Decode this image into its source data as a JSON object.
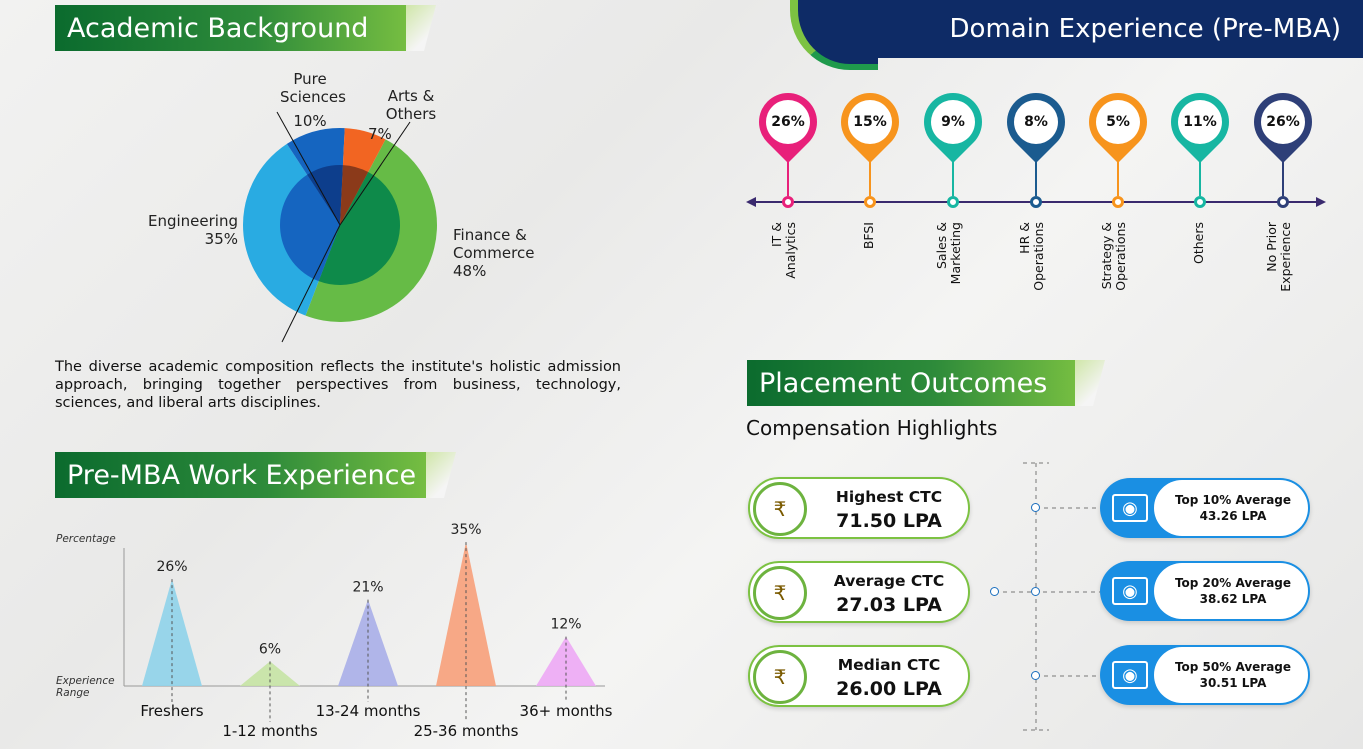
{
  "academic": {
    "title": "Academic Background",
    "description": "The diverse academic composition reflects the institute's holistic admission approach, bringing together perspectives from business, technology, sciences, and liberal arts disciplines.",
    "slices": [
      {
        "label": "Finance & Commerce",
        "value": "48%"
      },
      {
        "label": "Engineering",
        "value": "35%"
      },
      {
        "label": "Pure Sciences",
        "value": "10%"
      },
      {
        "label": "Arts & Others",
        "value": "7%"
      }
    ]
  },
  "work_experience": {
    "title": "Pre-MBA Work Experience",
    "ylabel": "Percentage",
    "xlabel": "Experience Range",
    "bars": [
      {
        "label": "Freshers",
        "value": "26%"
      },
      {
        "label": "1-12 months",
        "value": "6%"
      },
      {
        "label": "13-24 months",
        "value": "21%"
      },
      {
        "label": "25-36 months",
        "value": "35%"
      },
      {
        "label": "36+ months",
        "value": "12%"
      }
    ]
  },
  "domain": {
    "title": "Domain Experience (Pre-MBA)",
    "items": [
      {
        "label_1": "IT &",
        "label_2": "Analytics",
        "value": "26%"
      },
      {
        "label_1": "BFSI",
        "label_2": "",
        "value": "15%"
      },
      {
        "label_1": "Sales &",
        "label_2": "Marketing",
        "value": "9%"
      },
      {
        "label_1": "HR &",
        "label_2": "Operations",
        "value": "8%"
      },
      {
        "label_1": "Strategy &",
        "label_2": "Operations",
        "value": "5%"
      },
      {
        "label_1": "Others",
        "label_2": "",
        "value": "11%"
      },
      {
        "label_1": "No Prior",
        "label_2": "Experience",
        "value": "26%"
      }
    ]
  },
  "placement": {
    "title": "Placement Outcomes",
    "subtitle": "Compensation Highlights",
    "ctc": [
      {
        "title": "Highest CTC",
        "value": "71.50 LPA",
        "icon": "rupee-hand-icon"
      },
      {
        "title": "Average CTC",
        "value": "27.03 LPA",
        "icon": "rupee-hand-icon"
      },
      {
        "title": "Median CTC",
        "value": "26.00 LPA",
        "icon": "rupee-hand-icon"
      }
    ],
    "tops": [
      {
        "title": "Top 10% Average",
        "value": "43.26 LPA",
        "icon": "banknote-icon"
      },
      {
        "title": "Top 20% Average",
        "value": "38.62 LPA",
        "icon": "banknote-icon"
      },
      {
        "title": "Top 50% Average",
        "value": "30.51 LPA",
        "icon": "banknote-icon"
      }
    ]
  },
  "colors": {
    "finance": "#66bb46",
    "finance_inner": "#0e8a4a",
    "engineering": "#29abe2",
    "engineering_inner": "#1565c0",
    "pure_sciences": "#1565c0",
    "pure_sciences_inner": "#0d3e8c",
    "arts": "#f26522",
    "arts_inner": "#8b3a1a",
    "pins": [
      "#e8207a",
      "#f7941d",
      "#17b6a2",
      "#1b5b8f",
      "#f7941d",
      "#17b6a2",
      "#2e3f78"
    ],
    "bars": [
      "#8fd3ea",
      "#c5e3a4",
      "#a9aee8",
      "#f7a07a",
      "#eda8f5"
    ],
    "accent_green": "#7cc242",
    "navy": "#0e2b66",
    "timeline": "#3a2a6e",
    "card_blue": "#1a8fe3"
  },
  "chart_data": [
    {
      "type": "pie",
      "title": "Academic Background",
      "categories": [
        "Finance & Commerce",
        "Engineering",
        "Pure Sciences",
        "Arts & Others"
      ],
      "values": [
        48,
        35,
        10,
        7
      ]
    },
    {
      "type": "bar",
      "title": "Pre-MBA Work Experience",
      "xlabel": "Experience Range",
      "ylabel": "Percentage",
      "categories": [
        "Freshers",
        "1-12 months",
        "13-24 months",
        "25-36 months",
        "36+ months"
      ],
      "values": [
        26,
        6,
        21,
        35,
        12
      ]
    },
    {
      "type": "bar",
      "title": "Domain Experience (Pre-MBA)",
      "categories": [
        "IT & Analytics",
        "BFSI",
        "Sales & Marketing",
        "HR & Operations",
        "Strategy & Operations",
        "Others",
        "No Prior Experience"
      ],
      "values": [
        26,
        15,
        9,
        8,
        5,
        11,
        26
      ]
    }
  ]
}
